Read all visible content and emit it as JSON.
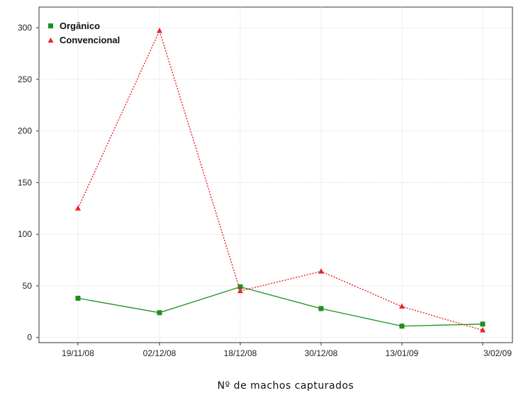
{
  "chart_data": {
    "type": "line",
    "title": "",
    "xlabel": "Nº de machos capturados",
    "ylabel": "",
    "categories": [
      "19/11/08",
      "02/12/08",
      "18/12/08",
      "30/12/08",
      "13/01/09",
      "3/02/09"
    ],
    "ylim": [
      -5,
      320
    ],
    "yticks": [
      0,
      50,
      100,
      150,
      200,
      250,
      300
    ],
    "grid": true,
    "legend_position": "top-left",
    "series": [
      {
        "name": "Orgânico",
        "values": [
          38,
          24,
          49,
          28,
          11,
          13
        ],
        "color": "#1e8f1e",
        "marker": "square",
        "line_style": "solid"
      },
      {
        "name": "Convencional",
        "values": [
          125,
          297,
          45,
          64,
          30,
          7
        ],
        "color": "#e8232a",
        "marker": "triangle",
        "line_style": "dotted"
      }
    ]
  }
}
